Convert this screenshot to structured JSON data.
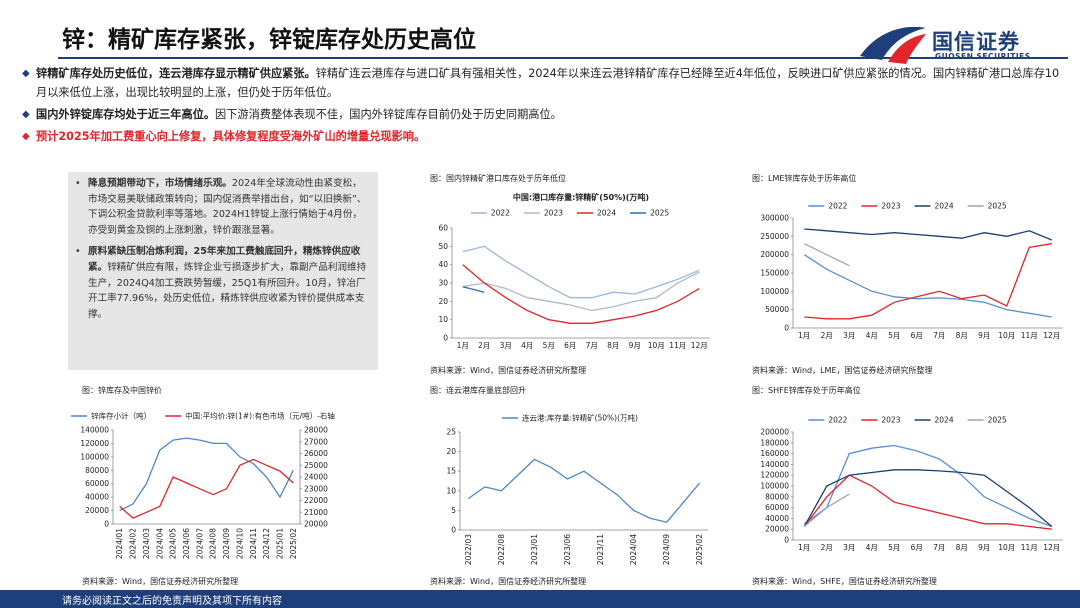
{
  "header": {
    "title": "锌：精矿库存紧张，锌锭库存处历史高位",
    "logo_name": "国信证券",
    "logo_en": "GUOSEN SECURITIES"
  },
  "bullets": [
    {
      "bold": "锌精矿库存处历史低位，连云港库存显示精矿供应紧张。",
      "text": "锌精矿连云港库存与进口矿具有强相关性，2024年以来连云港锌精矿库存已经降至近4年低位，反映进口矿供应紧张的情况。国内锌精矿港口总库存10月以来低位上涨，出现比较明显的上涨，但仍处于历年低位。"
    },
    {
      "bold": "国内外锌锭库存均处于近三年高位。",
      "text": "因下游消费整体表现不佳，国内外锌锭库存目前仍处于历史同期高位。"
    },
    {
      "bold": "预计2025年加工费重心向上修复，具体修复程度受海外矿山的增量兑现影响。",
      "text": ""
    }
  ],
  "sidebar": [
    {
      "bold": "降息预期带动下，市场情绪乐观。",
      "text": "2024年全球流动性由紧变松，市场交易美联储政策转向；国内促消费举措出台，如“以旧换新”、下调公积金贷款利率等落地。2024H1锌锭上涨行情始于4月份，亦受到黄金及铜的上涨刺激，锌价跟涨显著。"
    },
    {
      "bold": "原料紧缺压制冶炼利润，25年来加工费触底回升，精炼锌供应收紧。",
      "text": "锌精矿供应有限，炼锌企业亏损逐步扩大，靠副产品利润维持生产，2024Q4加工费跌势暂缓，25Q1有所回升。10月，锌冶厂开工率77.96%，处历史低位，精炼锌供应收紧为锌价提供成本支撑。"
    }
  ],
  "chart_data": [
    {
      "type": "line",
      "caption": "图：国内锌精矿港口库存处于历年低位",
      "title": "中国:港口库存量:锌精矿(50%)(万吨)",
      "source": "资料来源：Wind，国信证券经济研究所整理",
      "categories": [
        "1月",
        "2月",
        "3月",
        "4月",
        "5月",
        "6月",
        "7月",
        "8月",
        "9月",
        "10月",
        "11月",
        "12月"
      ],
      "series": [
        {
          "name": "2022",
          "color": "#9bb7e0",
          "values": [
            47,
            50,
            42,
            35,
            28,
            22,
            22,
            25,
            24,
            28,
            32,
            37
          ]
        },
        {
          "name": "2023",
          "color": "#b0b8c8",
          "values": [
            28,
            30,
            27,
            22,
            20,
            18,
            15,
            17,
            20,
            22,
            30,
            36
          ]
        },
        {
          "name": "2024",
          "color": "#e0262a",
          "values": [
            40,
            30,
            22,
            15,
            10,
            8,
            8,
            10,
            12,
            15,
            20,
            27
          ]
        },
        {
          "name": "2025",
          "color": "#2f6db5",
          "values": [
            28,
            25,
            null,
            null,
            null,
            null,
            null,
            null,
            null,
            null,
            null,
            null
          ]
        }
      ],
      "ylim": [
        0,
        60
      ],
      "yticks": [
        0,
        10,
        20,
        30,
        40,
        50,
        60
      ],
      "grid": false,
      "legend": "top"
    },
    {
      "type": "line",
      "caption": "图：LME锌库存处于历年高位",
      "source": "资料来源：Wind，LME，国信证券经济研究所整理",
      "categories": [
        "1月",
        "2月",
        "3月",
        "4月",
        "5月",
        "6月",
        "7月",
        "8月",
        "9月",
        "10月",
        "11月",
        "12月"
      ],
      "series": [
        {
          "name": "2022",
          "color": "#5b8fd0",
          "values": [
            200000,
            160000,
            130000,
            100000,
            85000,
            80000,
            82000,
            78000,
            70000,
            50000,
            40000,
            30000
          ]
        },
        {
          "name": "2023",
          "color": "#e0262a",
          "values": [
            30000,
            25000,
            25000,
            35000,
            70000,
            85000,
            100000,
            80000,
            90000,
            60000,
            220000,
            230000
          ]
        },
        {
          "name": "2024",
          "color": "#1f3d6e",
          "values": [
            270000,
            265000,
            260000,
            255000,
            260000,
            255000,
            250000,
            245000,
            260000,
            250000,
            265000,
            240000
          ]
        },
        {
          "name": "2025",
          "color": "#9aa5b8",
          "values": [
            230000,
            200000,
            170000,
            null,
            null,
            null,
            null,
            null,
            null,
            null,
            null,
            null
          ]
        }
      ],
      "ylim": [
        0,
        300000
      ],
      "yticks": [
        0,
        50000,
        100000,
        150000,
        200000,
        250000,
        300000
      ],
      "grid": false,
      "legend": "top"
    },
    {
      "type": "line",
      "caption": "图：锌库存及中国锌价",
      "source": "资料来源：Wind，国信证券经济研究所整理",
      "categories": [
        "2024/01",
        "2024/02",
        "2024/03",
        "2024/04",
        "2024/05",
        "2024/06",
        "2024/07",
        "2024/08",
        "2024/09",
        "2024/10",
        "2024/11",
        "2024/12",
        "2025/01",
        "2025/02"
      ],
      "series": [
        {
          "name": "锌库存小计（吨）",
          "color": "#4a86c8",
          "values": [
            20000,
            30000,
            60000,
            110000,
            125000,
            128000,
            125000,
            120000,
            120000,
            100000,
            90000,
            70000,
            40000,
            80000
          ]
        },
        {
          "name": "中国:平均价:锌(1#):有色市场（元/吨）-右轴",
          "color": "#e0262a",
          "axis": "y2",
          "values": [
            21500,
            20500,
            21000,
            21500,
            24000,
            23500,
            23000,
            22500,
            23000,
            25000,
            25500,
            25000,
            24500,
            23500
          ]
        }
      ],
      "ylim": [
        0,
        140000
      ],
      "yticks": [
        0,
        20000,
        40000,
        60000,
        80000,
        100000,
        120000,
        140000
      ],
      "y2lim": [
        20000,
        28000
      ],
      "y2ticks": [
        20000,
        21000,
        22000,
        23000,
        24000,
        25000,
        26000,
        27000,
        28000
      ],
      "grid": false,
      "legend": "top"
    },
    {
      "type": "line",
      "caption": "图：连云港库存量底部回升",
      "source": "资料来源：Wind，国信证券经济研究所整理",
      "categories": [
        "2022/03",
        null,
        "2022/08",
        null,
        "2023/01",
        null,
        "2023/06",
        null,
        "2023/11",
        null,
        "2024/04",
        null,
        "2024/09",
        null,
        "2025/02"
      ],
      "series": [
        {
          "name": "连云港:库存量:锌精矿(50%)(万吨)",
          "color": "#4a86c8",
          "values": [
            8,
            11,
            10,
            14,
            18,
            16,
            13,
            15,
            12,
            9,
            5,
            3,
            2,
            7,
            12
          ]
        }
      ],
      "ylim": [
        0,
        25
      ],
      "yticks": [
        0,
        5,
        10,
        15,
        20,
        25
      ],
      "grid": false,
      "legend": "top"
    },
    {
      "type": "line",
      "caption": "图：SHFE锌库存处于历年高位",
      "source": "资料来源：Wind，SHFE，国信证券经济研究所整理",
      "categories": [
        "1月",
        "2月",
        "3月",
        "4月",
        "5月",
        "6月",
        "7月",
        "8月",
        "9月",
        "10月",
        "11月",
        "12月"
      ],
      "series": [
        {
          "name": "2022",
          "color": "#5b8fd0",
          "values": [
            30000,
            60000,
            160000,
            170000,
            175000,
            165000,
            150000,
            120000,
            80000,
            60000,
            40000,
            25000
          ]
        },
        {
          "name": "2023",
          "color": "#e0262a",
          "values": [
            25000,
            80000,
            120000,
            100000,
            70000,
            60000,
            50000,
            40000,
            30000,
            30000,
            25000,
            20000
          ]
        },
        {
          "name": "2024",
          "color": "#1f3d6e",
          "values": [
            25000,
            100000,
            120000,
            125000,
            130000,
            130000,
            128000,
            125000,
            120000,
            90000,
            60000,
            25000
          ]
        },
        {
          "name": "2025",
          "color": "#9aa5b8",
          "values": [
            25000,
            60000,
            85000,
            null,
            null,
            null,
            null,
            null,
            null,
            null,
            null,
            null
          ]
        }
      ],
      "ylim": [
        0,
        200000
      ],
      "yticks": [
        0,
        20000,
        40000,
        60000,
        80000,
        100000,
        120000,
        140000,
        160000,
        180000,
        200000
      ],
      "grid": false,
      "legend": "top"
    }
  ],
  "footer": "请务必阅读正文之后的免责声明及其项下所有内容"
}
